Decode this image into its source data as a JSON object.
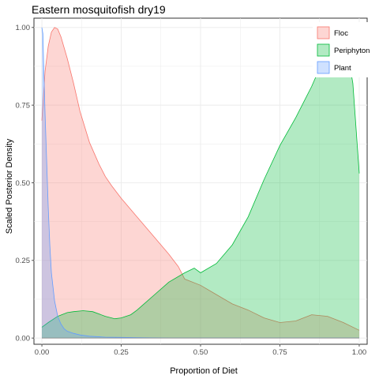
{
  "chart_data": {
    "type": "area",
    "title": "Eastern mosquitofish dry19",
    "xlabel": "Proportion of Diet",
    "ylabel": "Scaled Posterior Density",
    "xlim": [
      -0.025,
      1.025
    ],
    "ylim": [
      -0.02,
      1.03
    ],
    "x_ticks": [
      0.0,
      0.25,
      0.5,
      0.75,
      1.0
    ],
    "x_tick_labels": [
      "0.00",
      "0.25",
      "0.50",
      "0.75",
      "1.00"
    ],
    "y_ticks": [
      0.0,
      0.25,
      0.5,
      0.75,
      1.0
    ],
    "y_tick_labels": [
      "0.00",
      "0.25",
      "0.50",
      "0.75",
      "1.00"
    ],
    "grid": true,
    "legend_position": "top-right",
    "series": [
      {
        "name": "Floc",
        "fill": "#f8766d",
        "line": "#f8766d",
        "x": [
          0.0,
          0.01,
          0.02,
          0.03,
          0.04,
          0.05,
          0.06,
          0.08,
          0.1,
          0.12,
          0.15,
          0.18,
          0.2,
          0.22,
          0.25,
          0.3,
          0.35,
          0.4,
          0.43,
          0.45,
          0.5,
          0.55,
          0.6,
          0.65,
          0.7,
          0.75,
          0.8,
          0.85,
          0.9,
          0.95,
          1.0
        ],
        "y": [
          0.7,
          0.86,
          0.94,
          0.985,
          1.0,
          0.995,
          0.97,
          0.9,
          0.82,
          0.73,
          0.63,
          0.56,
          0.52,
          0.49,
          0.45,
          0.39,
          0.33,
          0.27,
          0.23,
          0.19,
          0.17,
          0.14,
          0.11,
          0.09,
          0.065,
          0.05,
          0.055,
          0.075,
          0.07,
          0.05,
          0.025
        ]
      },
      {
        "name": "Periphyton",
        "fill": "#00ba38",
        "line": "#00ba38",
        "x": [
          0.0,
          0.02,
          0.05,
          0.08,
          0.1,
          0.13,
          0.16,
          0.2,
          0.23,
          0.25,
          0.28,
          0.3,
          0.35,
          0.4,
          0.45,
          0.48,
          0.5,
          0.55,
          0.6,
          0.65,
          0.7,
          0.75,
          0.8,
          0.85,
          0.88,
          0.9,
          0.93,
          0.95,
          0.97,
          0.98,
          1.0
        ],
        "y": [
          0.035,
          0.05,
          0.07,
          0.082,
          0.085,
          0.088,
          0.085,
          0.07,
          0.062,
          0.065,
          0.075,
          0.09,
          0.135,
          0.18,
          0.21,
          0.225,
          0.21,
          0.24,
          0.3,
          0.39,
          0.51,
          0.62,
          0.71,
          0.81,
          0.88,
          0.93,
          0.96,
          0.94,
          0.88,
          0.82,
          0.53
        ]
      },
      {
        "name": "Plant",
        "fill": "#619cff",
        "line": "#619cff",
        "x": [
          0.0,
          0.003,
          0.006,
          0.01,
          0.015,
          0.02,
          0.025,
          0.03,
          0.04,
          0.05,
          0.06,
          0.07,
          0.08,
          0.1,
          0.12,
          0.15,
          0.2,
          0.25,
          0.3,
          0.4,
          0.5,
          0.6,
          0.7,
          0.8,
          0.9,
          1.0
        ],
        "y": [
          1.0,
          0.98,
          0.86,
          0.72,
          0.57,
          0.42,
          0.3,
          0.21,
          0.12,
          0.07,
          0.045,
          0.03,
          0.022,
          0.015,
          0.01,
          0.006,
          0.003,
          0.002,
          0.001,
          0.0,
          0.0,
          0.0,
          0.0,
          0.0,
          0.0,
          0.0
        ]
      }
    ]
  }
}
